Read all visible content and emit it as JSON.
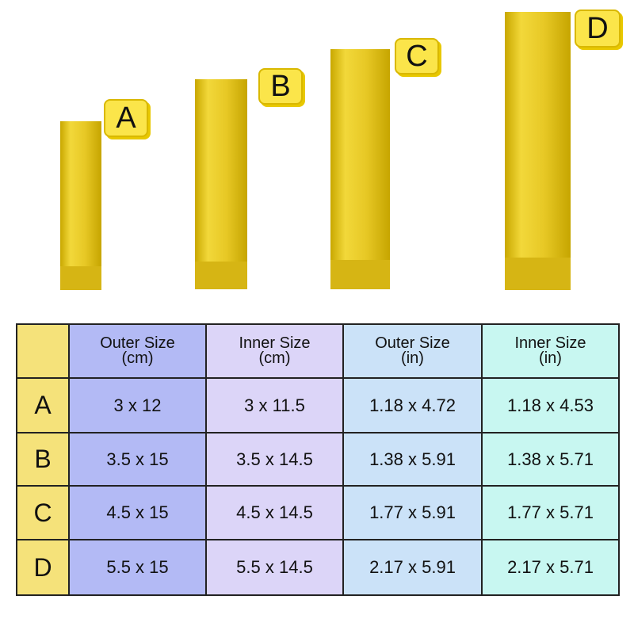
{
  "bags": [
    {
      "label": "A"
    },
    {
      "label": "B"
    },
    {
      "label": "C"
    },
    {
      "label": "D"
    }
  ],
  "table": {
    "header": [
      [
        "Outer Size",
        "(cm)"
      ],
      [
        "Inner Size",
        "(cm)"
      ],
      [
        "Outer Size",
        "(in)"
      ],
      [
        "Inner Size",
        "(in)"
      ]
    ],
    "rows": [
      {
        "label": "A",
        "cells": [
          "3 x 12",
          "3 x 11.5",
          "1.18 x 4.72",
          "1.18 x 4.53"
        ]
      },
      {
        "label": "B",
        "cells": [
          "3.5 x 15",
          "3.5 x 14.5",
          "1.38 x 5.91",
          "1.38 x 5.71"
        ]
      },
      {
        "label": "C",
        "cells": [
          "4.5 x 15",
          "4.5 x 14.5",
          "1.77 x 5.91",
          "1.77 x 5.71"
        ]
      },
      {
        "label": "D",
        "cells": [
          "5.5 x 15",
          "5.5 x 14.5",
          "2.17 x 5.91",
          "2.17 x 5.71"
        ]
      }
    ]
  }
}
